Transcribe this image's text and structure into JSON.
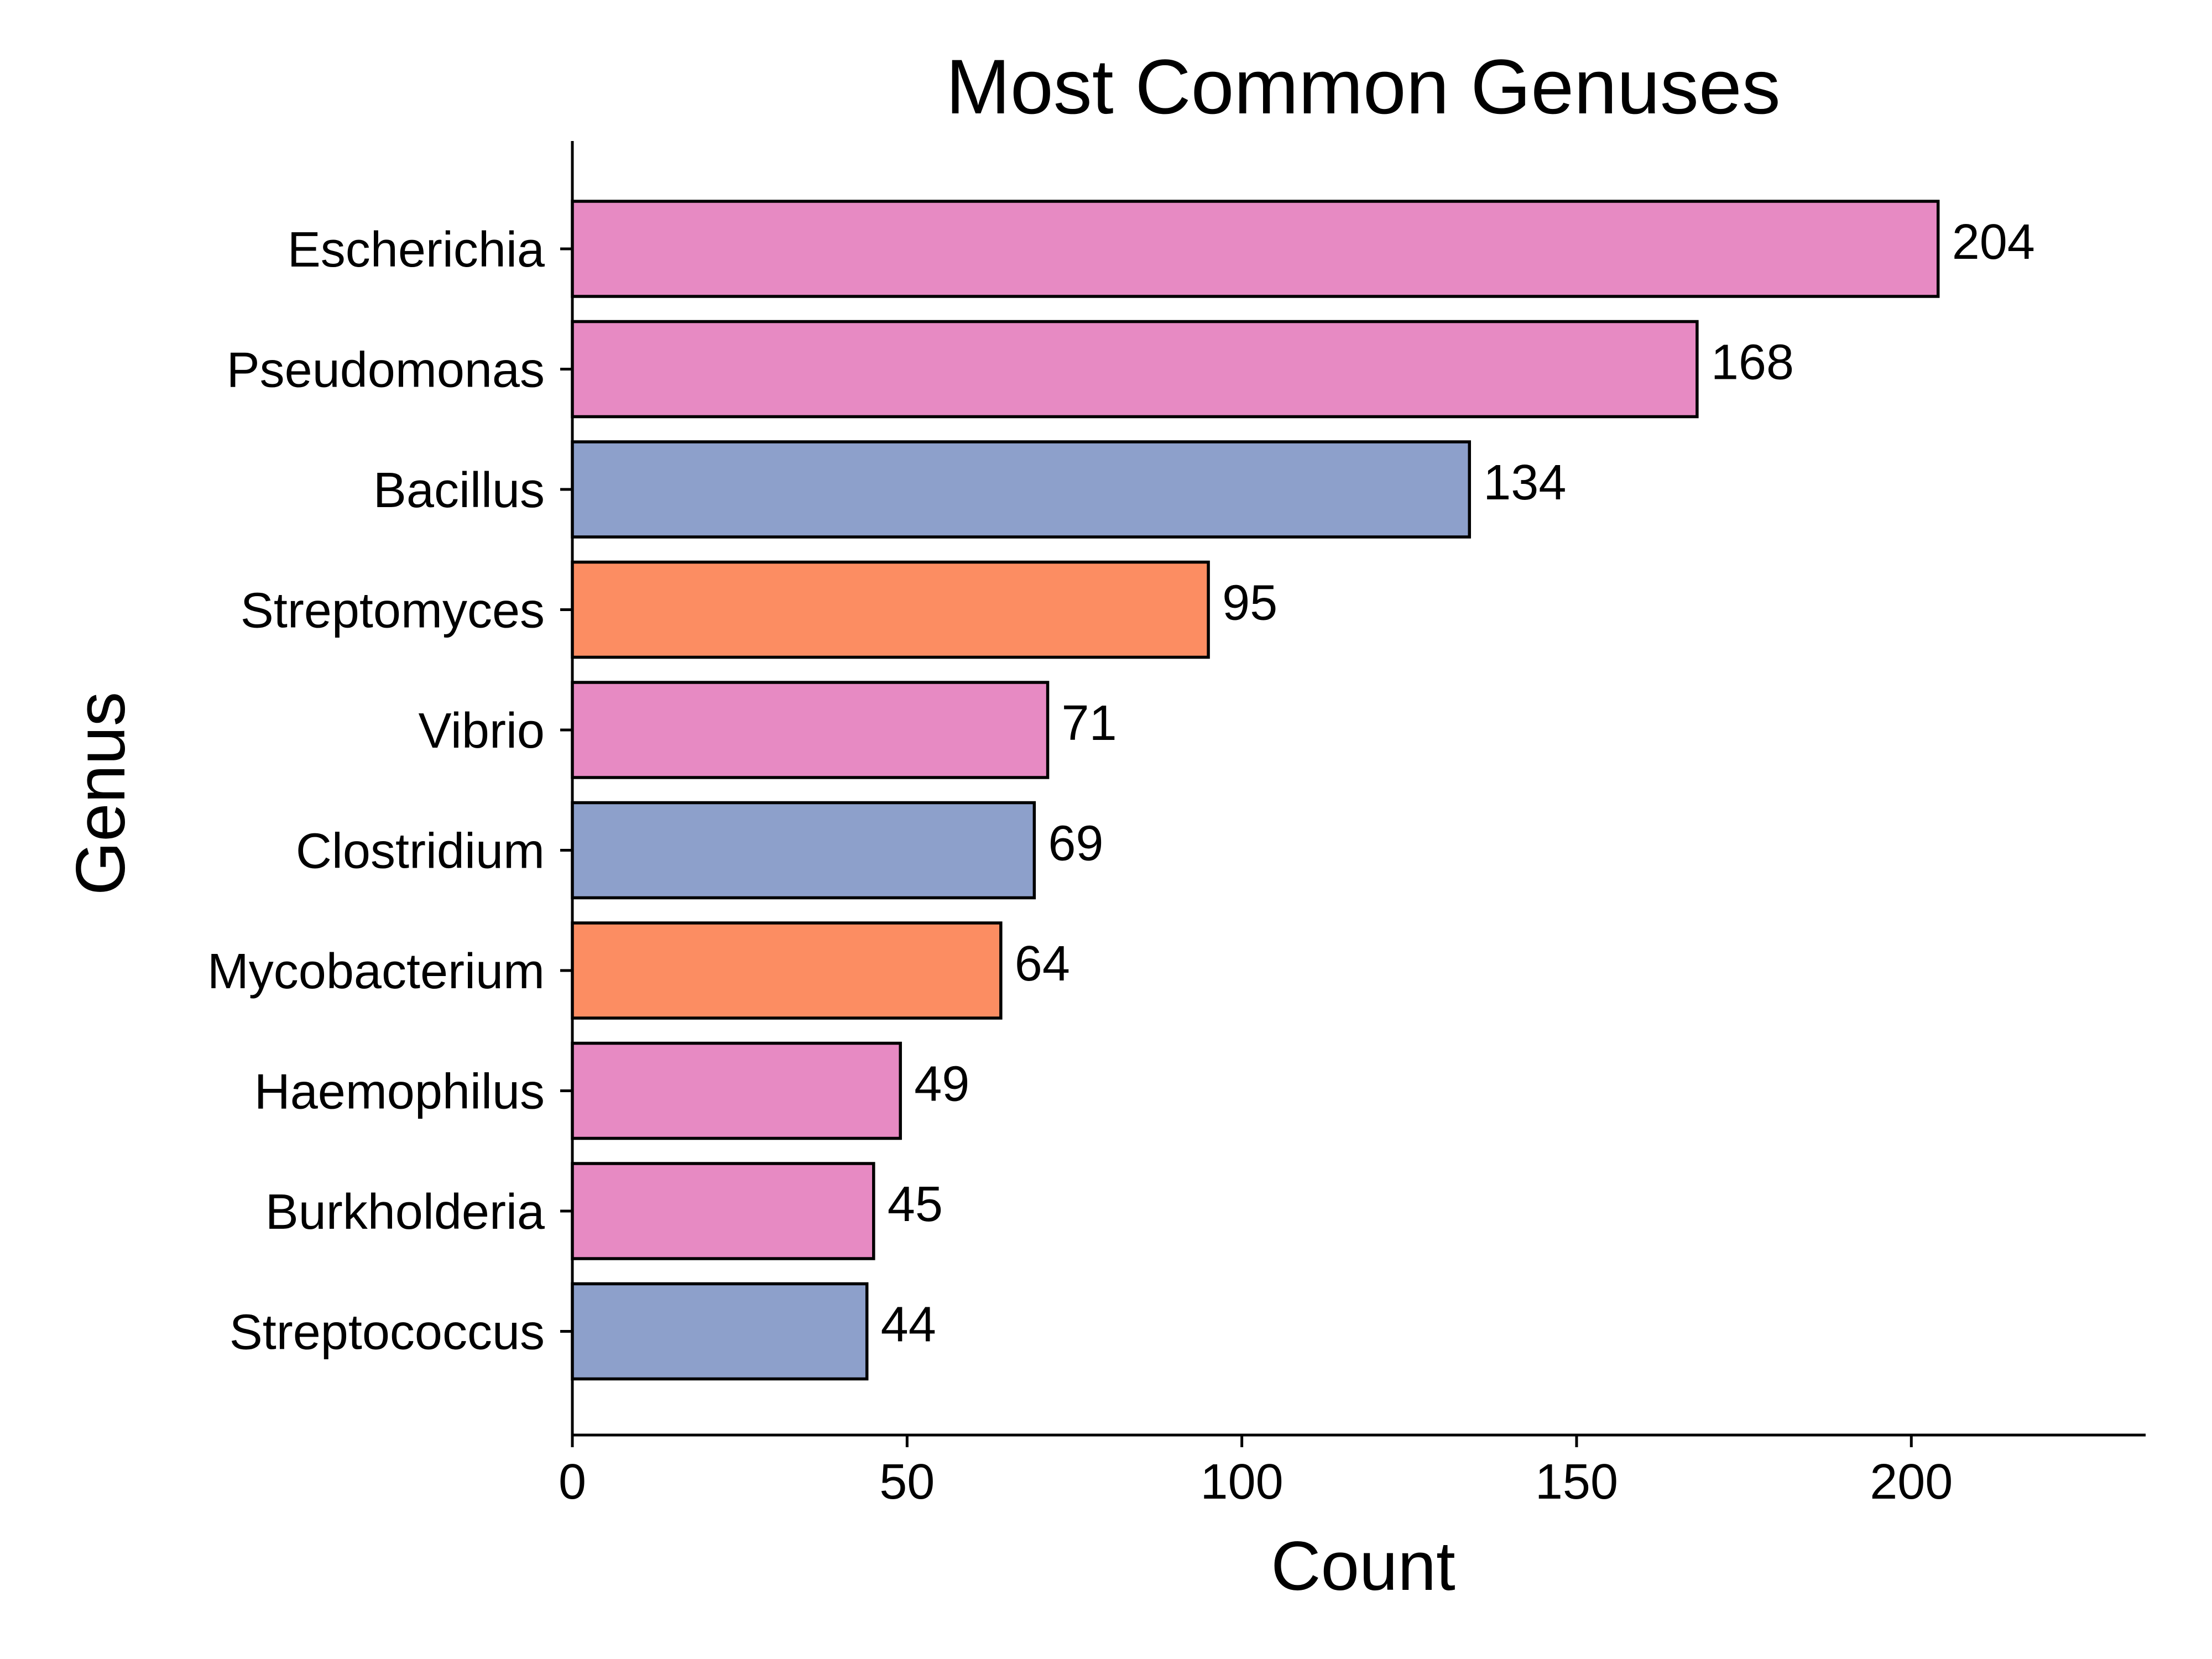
{
  "chart_data": {
    "type": "bar",
    "orientation": "horizontal",
    "title": "Most Common Genuses",
    "xlabel": "Count",
    "ylabel": "Genus",
    "xlim": [
      0,
      235
    ],
    "xticks": [
      0,
      50,
      100,
      150,
      200
    ],
    "grid": false,
    "legend": "none",
    "categories": [
      "Escherichia",
      "Pseudomonas",
      "Bacillus",
      "Streptomyces",
      "Vibrio",
      "Clostridium",
      "Mycobacterium",
      "Haemophilus",
      "Burkholderia",
      "Streptococcus"
    ],
    "values": [
      204,
      168,
      134,
      95,
      71,
      69,
      64,
      49,
      45,
      44
    ],
    "bar_colors": [
      "#e78ac3",
      "#e78ac3",
      "#8da0cb",
      "#fc8d62",
      "#e78ac3",
      "#8da0cb",
      "#fc8d62",
      "#e78ac3",
      "#e78ac3",
      "#8da0cb"
    ],
    "data_labels": [
      "204",
      "168",
      "134",
      "95",
      "71",
      "69",
      "64",
      "49",
      "45",
      "44"
    ]
  }
}
